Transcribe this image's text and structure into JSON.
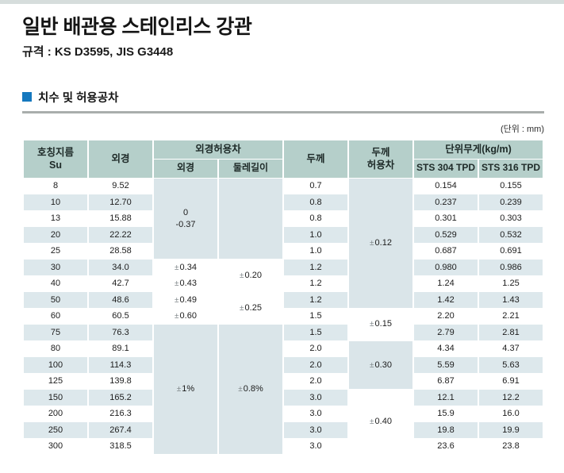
{
  "page": {
    "title": "일반 배관용 스테인리스 강관",
    "subtitle": "규격 : KS D3595, JIS G3448",
    "section_title": "치수 및 허용공차",
    "unit_label": "(단위 : mm)",
    "accent_color": "#1578be",
    "header_bg": "#b5cfca",
    "stripe_bg": "#dde8ec",
    "merged_cell_bg": "#dae5e9"
  },
  "table": {
    "header": {
      "col_su": "호칭지름\nSu",
      "col_od": "외경",
      "col_od_tol": "외경허용차",
      "col_od_tol_od": "외경",
      "col_od_tol_circ": "둘레길이",
      "col_thk": "두께",
      "col_thk_tol": "두께\n허용차",
      "col_wt": "단위무게(kg/m)",
      "col_wt_304": "STS 304 TPD",
      "col_wt_316": "STS 316 TPD"
    },
    "rows": [
      {
        "su": "8",
        "od": "9.52",
        "thk": "0.7",
        "w304": "0.154",
        "w316": "0.155"
      },
      {
        "su": "10",
        "od": "12.70",
        "thk": "0.8",
        "w304": "0.237",
        "w316": "0.239"
      },
      {
        "su": "13",
        "od": "15.88",
        "thk": "0.8",
        "w304": "0.301",
        "w316": "0.303"
      },
      {
        "su": "20",
        "od": "22.22",
        "thk": "1.0",
        "w304": "0.529",
        "w316": "0.532"
      },
      {
        "su": "25",
        "od": "28.58",
        "thk": "1.0",
        "w304": "0.687",
        "w316": "0.691"
      },
      {
        "su": "30",
        "od": "34.0",
        "thk": "1.2",
        "w304": "0.980",
        "w316": "0.986"
      },
      {
        "su": "40",
        "od": "42.7",
        "thk": "1.2",
        "w304": "1.24",
        "w316": "1.25"
      },
      {
        "su": "50",
        "od": "48.6",
        "thk": "1.2",
        "w304": "1.42",
        "w316": "1.43"
      },
      {
        "su": "60",
        "od": "60.5",
        "thk": "1.5",
        "w304": "2.20",
        "w316": "2.21"
      },
      {
        "su": "75",
        "od": "76.3",
        "thk": "1.5",
        "w304": "2.79",
        "w316": "2.81"
      },
      {
        "su": "80",
        "od": "89.1",
        "thk": "2.0",
        "w304": "4.34",
        "w316": "4.37"
      },
      {
        "su": "100",
        "od": "114.3",
        "thk": "2.0",
        "w304": "5.59",
        "w316": "5.63"
      },
      {
        "su": "125",
        "od": "139.8",
        "thk": "2.0",
        "w304": "6.87",
        "w316": "6.91"
      },
      {
        "su": "150",
        "od": "165.2",
        "thk": "3.0",
        "w304": "12.1",
        "w316": "12.2"
      },
      {
        "su": "200",
        "od": "216.3",
        "thk": "3.0",
        "w304": "15.9",
        "w316": "16.0"
      },
      {
        "su": "250",
        "od": "267.4",
        "thk": "3.0",
        "w304": "19.8",
        "w316": "19.9"
      },
      {
        "su": "300",
        "od": "318.5",
        "thk": "3.0",
        "w304": "23.6",
        "w316": "23.8"
      }
    ],
    "od_tol_od_groups": [
      {
        "text": "0\n-0.37",
        "start": 0,
        "span": 5,
        "shade": true
      },
      {
        "text": "±0.34",
        "start": 5,
        "span": 1,
        "shade": false
      },
      {
        "text": "±0.43",
        "start": 6,
        "span": 1,
        "shade": false
      },
      {
        "text": "±0.49",
        "start": 7,
        "span": 1,
        "shade": false
      },
      {
        "text": "±0.60",
        "start": 8,
        "span": 1,
        "shade": false
      },
      {
        "text": "±1%",
        "start": 9,
        "span": 8,
        "shade": true
      }
    ],
    "od_tol_circ_groups": [
      {
        "text": "",
        "start": 0,
        "span": 5,
        "shade": true
      },
      {
        "text": "±0.20",
        "start": 5,
        "span": 2,
        "shade": false
      },
      {
        "text": "±0.25",
        "start": 7,
        "span": 2,
        "shade": false
      },
      {
        "text": "±0.8%",
        "start": 9,
        "span": 8,
        "shade": true
      }
    ],
    "thk_tol_groups": [
      {
        "text": "±0.12",
        "start": 0,
        "span": 8,
        "shade": true
      },
      {
        "text": "±0.15",
        "start": 8,
        "span": 2,
        "shade": false
      },
      {
        "text": "±0.30",
        "start": 10,
        "span": 3,
        "shade": true
      },
      {
        "text": "±0.40",
        "start": 13,
        "span": 4,
        "shade": false
      }
    ]
  }
}
